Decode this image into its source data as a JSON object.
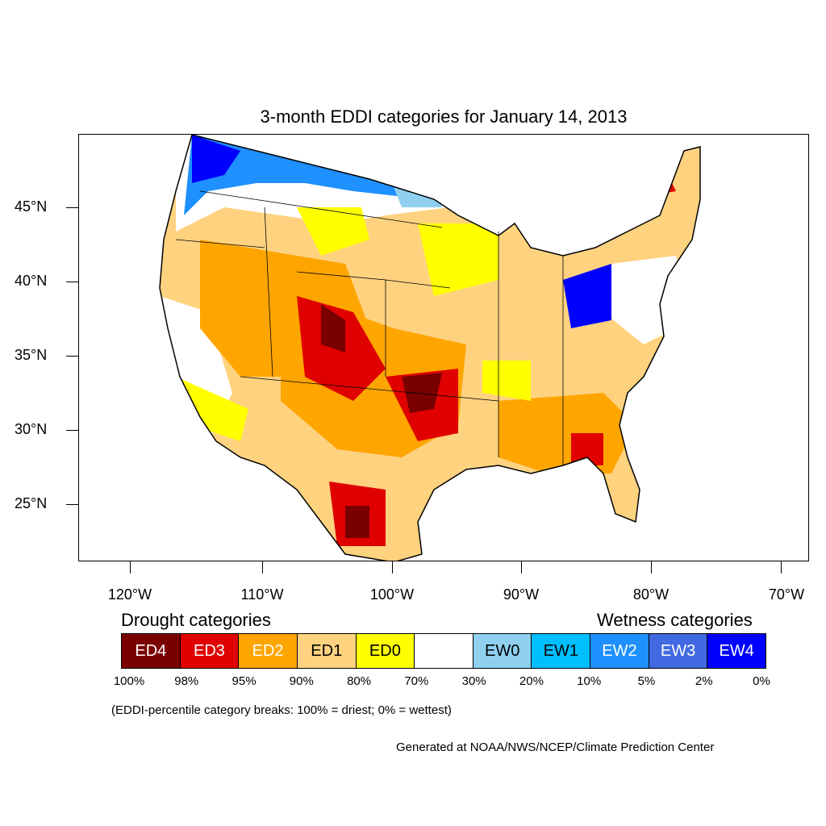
{
  "title": "3-month EDDI categories for January 14, 2013",
  "lat_labels": [
    "45°N",
    "40°N",
    "35°N",
    "30°N",
    "25°N"
  ],
  "lon_labels": [
    "120°W",
    "110°W",
    "100°W",
    "90°W",
    "80°W",
    "70°W"
  ],
  "legend": {
    "drought_heading": "Drought categories",
    "wetness_heading": "Wetness categories",
    "categories": [
      {
        "label": "ED4",
        "color": "#7a0000",
        "text_color": "#ffffff"
      },
      {
        "label": "ED3",
        "color": "#e00000",
        "text_color": "#ffffff"
      },
      {
        "label": "ED2",
        "color": "#ffa500",
        "text_color": "#ffffff"
      },
      {
        "label": "ED1",
        "color": "#ffd280",
        "text_color": "#000000"
      },
      {
        "label": "ED0",
        "color": "#ffff00",
        "text_color": "#000000"
      },
      {
        "label": "",
        "color": "#ffffff",
        "text_color": "#000000"
      },
      {
        "label": "EW0",
        "color": "#8fd0f0",
        "text_color": "#000000"
      },
      {
        "label": "EW1",
        "color": "#00bfff",
        "text_color": "#000000"
      },
      {
        "label": "EW2",
        "color": "#1e90ff",
        "text_color": "#ffffff"
      },
      {
        "label": "EW3",
        "color": "#4169e1",
        "text_color": "#ffffff"
      },
      {
        "label": "EW4",
        "color": "#0000ff",
        "text_color": "#ffffff"
      }
    ],
    "breaks": [
      "100%",
      "98%",
      "95%",
      "90%",
      "80%",
      "70%",
      "30%",
      "20%",
      "10%",
      "5%",
      "2%",
      "0%"
    ]
  },
  "note": "(EDDI-percentile category breaks: 100% = driest; 0% = wettest)",
  "credit": "Generated at NOAA/NWS/NCEP/Climate Prediction Center"
}
